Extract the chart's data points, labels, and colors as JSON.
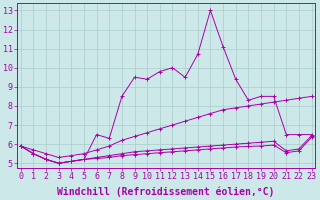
{
  "x": [
    0,
    1,
    2,
    3,
    4,
    5,
    6,
    7,
    8,
    9,
    10,
    11,
    12,
    13,
    14,
    15,
    16,
    17,
    18,
    19,
    20,
    21,
    22,
    23
  ],
  "line_spiky": [
    5.9,
    5.5,
    5.2,
    5.0,
    5.1,
    5.2,
    6.5,
    6.3,
    8.5,
    9.5,
    9.4,
    9.8,
    10.0,
    9.5,
    10.7,
    13.0,
    11.1,
    9.4,
    8.3,
    8.5,
    8.5,
    6.5,
    6.5,
    6.5
  ],
  "line_diag": [
    5.9,
    5.7,
    5.5,
    5.3,
    5.4,
    5.5,
    5.7,
    5.9,
    6.2,
    6.4,
    6.6,
    6.8,
    7.0,
    7.2,
    7.4,
    7.6,
    7.8,
    7.9,
    8.0,
    8.1,
    8.2,
    8.3,
    8.4,
    8.5
  ],
  "line_flat1": [
    5.9,
    5.5,
    5.2,
    5.0,
    5.1,
    5.2,
    5.3,
    5.4,
    5.5,
    5.6,
    5.65,
    5.7,
    5.75,
    5.8,
    5.85,
    5.9,
    5.95,
    6.0,
    6.05,
    6.1,
    6.15,
    5.65,
    5.75,
    6.45
  ],
  "line_flat2": [
    5.9,
    5.5,
    5.2,
    5.0,
    5.1,
    5.2,
    5.25,
    5.3,
    5.4,
    5.45,
    5.5,
    5.55,
    5.6,
    5.65,
    5.7,
    5.75,
    5.8,
    5.85,
    5.88,
    5.9,
    5.95,
    5.55,
    5.65,
    6.35
  ],
  "bg_color": "#cde8e8",
  "grid_color": "#aacccc",
  "line_color": "#aa00aa",
  "markersize": 2.5,
  "xlabel": "Windchill (Refroidissement éolien,°C)",
  "xlim": [
    -0.3,
    23.3
  ],
  "ylim": [
    4.75,
    13.4
  ],
  "yticks": [
    5,
    6,
    7,
    8,
    9,
    10,
    11,
    12,
    13
  ],
  "xticks": [
    0,
    1,
    2,
    3,
    4,
    5,
    6,
    7,
    8,
    9,
    10,
    11,
    12,
    13,
    14,
    15,
    16,
    17,
    18,
    19,
    20,
    21,
    22,
    23
  ],
  "tick_fontsize": 6,
  "xlabel_fontsize": 7
}
